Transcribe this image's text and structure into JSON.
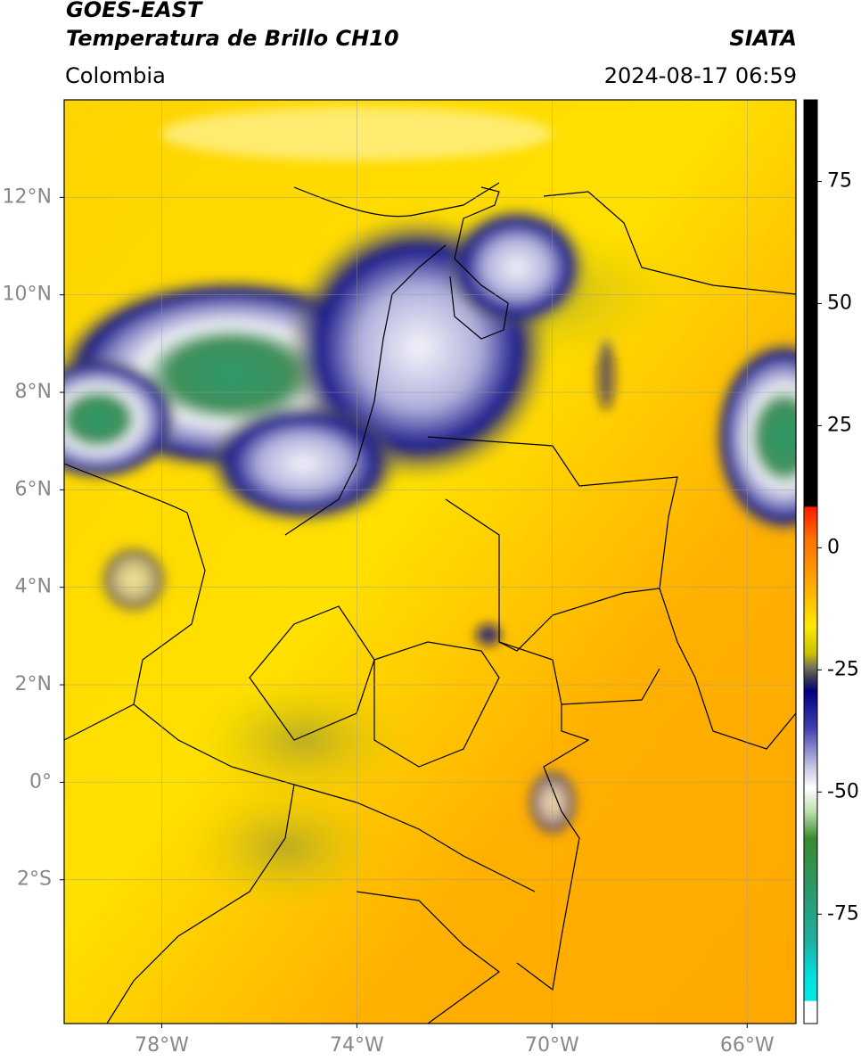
{
  "header": {
    "satellite": "GOES-EAST",
    "product": "Temperatura de Brillo CH10",
    "region": "Colombia",
    "source": "SIATA",
    "datetime": "2024-08-17 06:59"
  },
  "map": {
    "xlim": [
      -80,
      -65
    ],
    "ylim": [
      -4.95,
      14
    ],
    "lon_ticks": [
      {
        "value": -78,
        "label": "78°W"
      },
      {
        "value": -74,
        "label": "74°W"
      },
      {
        "value": -70,
        "label": "70°W"
      },
      {
        "value": -66,
        "label": "66°W"
      }
    ],
    "lat_ticks": [
      {
        "value": 12,
        "label": "12°N"
      },
      {
        "value": 10,
        "label": "10°N"
      },
      {
        "value": 8,
        "label": "8°N"
      },
      {
        "value": 6,
        "label": "6°N"
      },
      {
        "value": 4,
        "label": "4°N"
      },
      {
        "value": 2,
        "label": "2°N"
      },
      {
        "value": 0,
        "label": "0°"
      },
      {
        "value": -2,
        "label": "2°S"
      }
    ]
  },
  "colorbar": {
    "lim": [
      -97.4,
      91.7
    ],
    "ticks": [
      75,
      50,
      25,
      0,
      -25,
      -50,
      -75
    ]
  }
}
